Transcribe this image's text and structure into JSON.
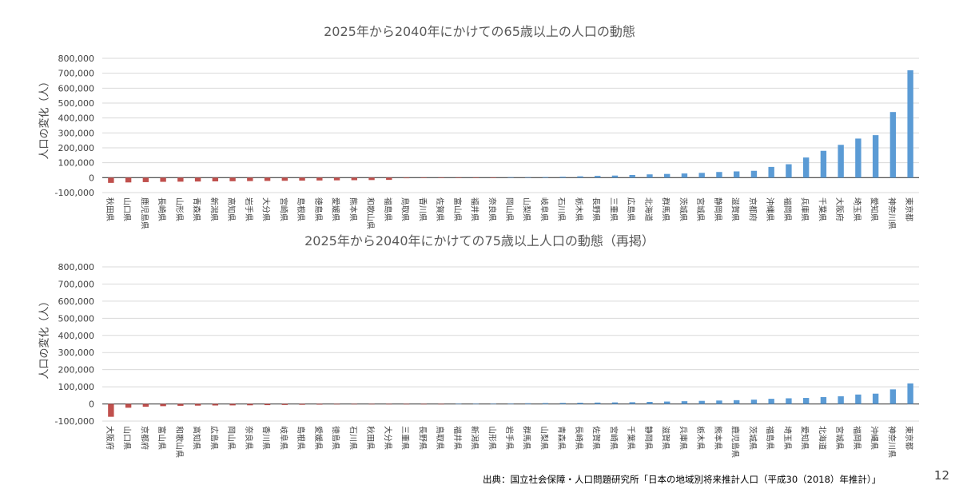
{
  "page": {
    "source": "出典：国立社会保障・人口問題研究所「日本の地域別将来推計人口（平成30（2018）年推計）」",
    "page_number": "12"
  },
  "colors": {
    "positive": "#5b9bd5",
    "negative": "#c0504d"
  },
  "chart_data": [
    {
      "type": "bar",
      "title": "2025年から2040年にかけての65歳以上の人口の動態",
      "ylabel": "人口の変化（人）",
      "xlabel": "",
      "ylim": [
        -100000,
        800000
      ],
      "yticks": [
        -100000,
        0,
        100000,
        200000,
        300000,
        400000,
        500000,
        600000,
        700000,
        800000
      ],
      "ytick_labels": [
        "-100,000",
        "0",
        "100,000",
        "200,000",
        "300,000",
        "400,000",
        "500,000",
        "600,000",
        "700,000",
        "800,000"
      ],
      "grid": true,
      "categories": [
        "秋田県",
        "山口県",
        "鹿児島県",
        "長崎県",
        "山形県",
        "青森県",
        "新潟県",
        "高知県",
        "岩手県",
        "大分県",
        "宮崎県",
        "島根県",
        "徳島県",
        "愛媛県",
        "熊本県",
        "和歌山県",
        "福島県",
        "鳥取県",
        "香川県",
        "佐賀県",
        "富山県",
        "福井県",
        "奈良県",
        "岡山県",
        "山梨県",
        "岐阜県",
        "石川県",
        "栃木県",
        "長野県",
        "三重県",
        "広島県",
        "北海道",
        "群馬県",
        "茨城県",
        "宮城県",
        "静岡県",
        "滋賀県",
        "京都府",
        "沖縄県",
        "福岡県",
        "兵庫県",
        "千葉県",
        "大阪府",
        "埼玉県",
        "愛知県",
        "神奈川県",
        "東京都"
      ],
      "values": [
        -35000,
        -32000,
        -30000,
        -28000,
        -27000,
        -26000,
        -25000,
        -24000,
        -23000,
        -22000,
        -21000,
        -20000,
        -19000,
        -18000,
        -17000,
        -16000,
        -15000,
        -4000,
        -3000,
        -2500,
        -2000,
        -1500,
        -1000,
        2000,
        3000,
        4000,
        6000,
        9000,
        12000,
        14000,
        18000,
        22000,
        25000,
        28000,
        32000,
        38000,
        42000,
        46000,
        72000,
        90000,
        135000,
        180000,
        220000,
        262000,
        285000,
        440000,
        720000
      ]
    },
    {
      "type": "bar",
      "title": "2025年から2040年にかけての75歳以上人口の動態（再掲）",
      "ylabel": "人口の変化（人）",
      "xlabel": "",
      "ylim": [
        -100000,
        800000
      ],
      "yticks": [
        -100000,
        0,
        100000,
        200000,
        300000,
        400000,
        500000,
        600000,
        700000,
        800000
      ],
      "ytick_labels": [
        "-100,000",
        "0",
        "100,000",
        "200,000",
        "300,000",
        "400,000",
        "500,000",
        "600,000",
        "700,000",
        "800,000"
      ],
      "grid": true,
      "categories": [
        "大阪府",
        "山口県",
        "京都府",
        "富山県",
        "和歌山県",
        "高知県",
        "広島県",
        "岡山県",
        "奈良県",
        "香川県",
        "岐阜県",
        "島根県",
        "愛媛県",
        "徳島県",
        "石川県",
        "秋田県",
        "大分県",
        "三重県",
        "長野県",
        "鳥取県",
        "福井県",
        "新潟県",
        "山形県",
        "岩手県",
        "群馬県",
        "山梨県",
        "青森県",
        "長崎県",
        "佐賀県",
        "宮崎県",
        "千葉県",
        "静岡県",
        "滋賀県",
        "兵庫県",
        "栃木県",
        "熊本県",
        "鹿児島県",
        "茨城県",
        "福島県",
        "埼玉県",
        "愛知県",
        "北海道",
        "宮城県",
        "福岡県",
        "沖縄県",
        "神奈川県",
        "東京都"
      ],
      "values": [
        -75000,
        -22000,
        -16000,
        -13000,
        -11000,
        -10000,
        -9000,
        -8500,
        -8000,
        -7000,
        -6000,
        -5000,
        -4000,
        -3000,
        -2500,
        -2000,
        -1500,
        -1000,
        -800,
        -500,
        300,
        1000,
        2000,
        3000,
        4000,
        5000,
        6000,
        7000,
        8000,
        9000,
        10000,
        12000,
        14000,
        16000,
        18000,
        20000,
        22000,
        25000,
        30000,
        33000,
        35000,
        40000,
        45000,
        55000,
        60000,
        85000,
        120000
      ]
    }
  ]
}
